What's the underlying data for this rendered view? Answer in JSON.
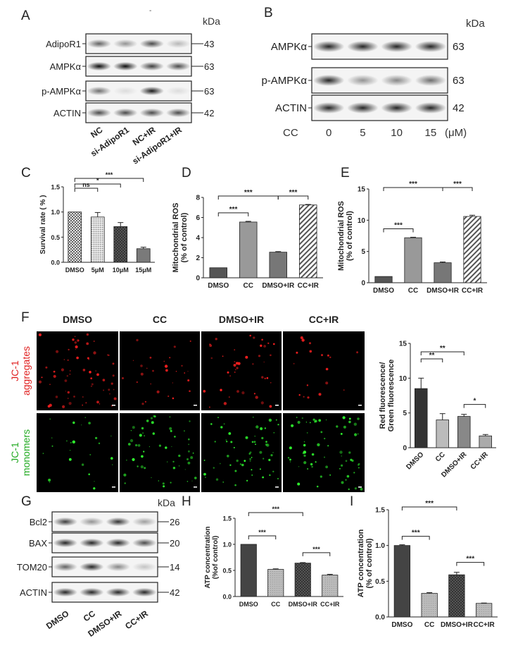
{
  "panel_letters": [
    "A",
    "B",
    "C",
    "D",
    "E",
    "F",
    "G",
    "H",
    "I"
  ],
  "blot_a": {
    "dash": "-",
    "unit": "kDa",
    "rows": [
      {
        "label": "AdipoR1",
        "kda": "43",
        "bands": [
          0.6,
          0.4,
          0.7,
          0.25
        ]
      },
      {
        "label": "AMPKα",
        "kda": "63",
        "bands": [
          0.95,
          0.95,
          0.75,
          0.7
        ]
      },
      {
        "label": "p-AMPKα",
        "kda": "63",
        "bands": [
          0.55,
          0.1,
          0.9,
          0.1
        ]
      },
      {
        "label": "ACTIN",
        "kda": "42",
        "bands": [
          0.7,
          0.7,
          0.7,
          0.7
        ]
      }
    ],
    "lanes": [
      "NC",
      "si-AdipoR1",
      "NC+IR",
      "si-AdipoR1+IR"
    ]
  },
  "blot_b": {
    "unit": "kDa",
    "rows": [
      {
        "label": "AMPKα",
        "kda": "63",
        "bands": [
          0.85,
          0.85,
          0.85,
          0.85
        ]
      },
      {
        "label": "p-AMPKα",
        "kda": "63",
        "bands": [
          0.85,
          0.4,
          0.45,
          0.55
        ]
      },
      {
        "label": "ACTIN",
        "kda": "42",
        "bands": [
          0.85,
          0.85,
          0.85,
          0.85
        ]
      }
    ],
    "treatment_label": "CC",
    "lanes": [
      "0",
      "5",
      "10",
      "15"
    ],
    "unit_label": "(μM)"
  },
  "blot_g": {
    "unit": "kDa",
    "rows": [
      {
        "label": "Bcl2",
        "kda": "26",
        "bands": [
          0.75,
          0.4,
          0.8,
          0.35
        ]
      },
      {
        "label": "BAX",
        "kda": "20",
        "bands": [
          0.85,
          0.85,
          0.85,
          0.7
        ]
      },
      {
        "label": "TOM20",
        "kda": "14",
        "bands": [
          0.6,
          0.85,
          0.45,
          0.2
        ]
      },
      {
        "label": "ACTIN",
        "kda": "42",
        "bands": [
          0.85,
          0.85,
          0.85,
          0.85
        ]
      }
    ],
    "lanes": [
      "DMSO",
      "CC",
      "DMSO+IR",
      "CC+IR"
    ]
  },
  "microscopy_f": {
    "columns": [
      "DMSO",
      "CC",
      "DMSO+IR",
      "CC+IR"
    ],
    "row_labels": [
      {
        "line1": "JC-1",
        "line2": "aggregates",
        "color": "#e02020"
      },
      {
        "line1": "JC-1",
        "line2": "monomers",
        "color": "#22aa22"
      }
    ]
  },
  "chart_data": [
    {
      "id": "C",
      "type": "bar",
      "ylabel": "Survival rate ( % )",
      "categories": [
        "DMSO",
        "5μM",
        "10μM",
        "15μM"
      ],
      "values": [
        1.0,
        0.9,
        0.71,
        0.27
      ],
      "errors": [
        0,
        0.09,
        0.08,
        0.03
      ],
      "ylim": [
        0,
        1.5
      ],
      "yticks": [
        "0.0",
        "0.5",
        "1.0",
        "1.5"
      ],
      "sig": [
        {
          "from": 0,
          "to": 1,
          "label": "ns"
        },
        {
          "from": 0,
          "to": 2,
          "label": "*"
        },
        {
          "from": 0,
          "to": 3,
          "label": "***"
        }
      ]
    },
    {
      "id": "D",
      "type": "bar",
      "ylabel": "Mitochondrial ROS (% of control)",
      "categories": [
        "DMSO",
        "CC",
        "DMSO+IR",
        "CC+IR"
      ],
      "values": [
        1.0,
        5.55,
        2.55,
        7.25
      ],
      "errors": [
        0,
        0.07,
        0.06,
        0.05
      ],
      "ylim": [
        0,
        8
      ],
      "yticks": [
        "0",
        "2",
        "4",
        "6",
        "8"
      ],
      "sig": [
        {
          "from": 0,
          "to": 1,
          "label": "***"
        },
        {
          "from": 0,
          "to": 2,
          "label": "***"
        },
        {
          "from": 2,
          "to": 3,
          "label": "***"
        }
      ]
    },
    {
      "id": "E",
      "type": "bar",
      "ylabel": "Mitochondrial ROS (% of control)",
      "categories": [
        "DMSO",
        "CC",
        "DMSO+IR",
        "CC+IR"
      ],
      "values": [
        1.0,
        7.2,
        3.2,
        10.6
      ],
      "errors": [
        0,
        0.08,
        0.12,
        0.2
      ],
      "ylim": [
        0,
        15
      ],
      "yticks": [
        "0",
        "5",
        "10",
        "15"
      ],
      "sig": [
        {
          "from": 0,
          "to": 1,
          "label": "***"
        },
        {
          "from": 0,
          "to": 2,
          "label": "***"
        },
        {
          "from": 2,
          "to": 3,
          "label": "***"
        }
      ]
    },
    {
      "id": "F",
      "type": "bar",
      "ylabel": "Red fluorescence/ Green fluorescence",
      "categories": [
        "DMSO",
        "CC",
        "DMSO+IR",
        "CC+IR"
      ],
      "values": [
        8.5,
        4.0,
        4.5,
        1.7
      ],
      "errors": [
        1.5,
        0.9,
        0.3,
        0.2
      ],
      "ylim": [
        0,
        15
      ],
      "yticks": [
        "0",
        "5",
        "10",
        "15"
      ],
      "sig": [
        {
          "from": 0,
          "to": 1,
          "label": "**"
        },
        {
          "from": 0,
          "to": 2,
          "label": "**"
        },
        {
          "from": 2,
          "to": 3,
          "label": "*"
        }
      ]
    },
    {
      "id": "H",
      "type": "bar",
      "ylabel": "ATP concentration (%of control)",
      "categories": [
        "DMSO",
        "CC",
        "DMSO+IR",
        "CC+IR"
      ],
      "values": [
        1.0,
        0.52,
        0.64,
        0.41
      ],
      "errors": [
        0,
        0.01,
        0.01,
        0.015
      ],
      "ylim": [
        0,
        1.5
      ],
      "yticks": [
        "0.0",
        "0.5",
        "1.0",
        "1.5"
      ],
      "sig": [
        {
          "from": 0,
          "to": 1,
          "label": "***"
        },
        {
          "from": 0,
          "to": 2,
          "label": "***"
        },
        {
          "from": 2,
          "to": 3,
          "label": "***"
        }
      ]
    },
    {
      "id": "I",
      "type": "bar",
      "ylabel": "ATP concentration (% of control)",
      "categories": [
        "DMSO",
        "CC",
        "DMSO+IR",
        "CC+IR"
      ],
      "values": [
        1.0,
        0.33,
        0.59,
        0.19
      ],
      "errors": [
        0.01,
        0.01,
        0.035,
        0.005
      ],
      "ylim": [
        0,
        1.5
      ],
      "yticks": [
        "0.0",
        "0.5",
        "1.0",
        "1.5"
      ],
      "sig": [
        {
          "from": 0,
          "to": 1,
          "label": "***"
        },
        {
          "from": 0,
          "to": 2,
          "label": "***"
        },
        {
          "from": 2,
          "to": 3,
          "label": "***"
        }
      ]
    }
  ]
}
